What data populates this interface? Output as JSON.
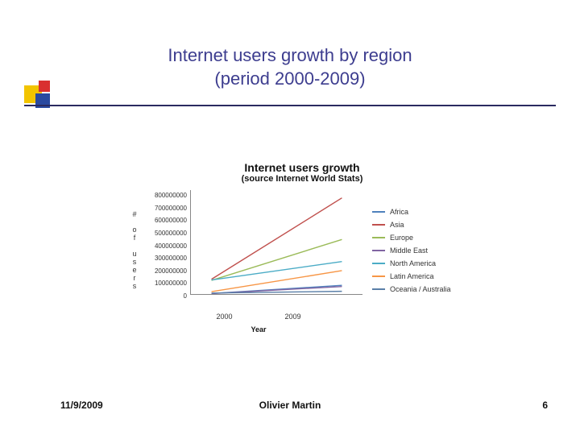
{
  "slide": {
    "title_line1": "Internet users growth by region",
    "title_line2": "(period 2000-2009)",
    "title_color": "#3d3d8f",
    "rule_color": "#2a2a60"
  },
  "chart": {
    "type": "line",
    "title": "Internet users growth",
    "subtitle": "(source Internet World Stats)",
    "yaxis_label": "# of users",
    "xaxis_label": "Year",
    "xlim": [
      2000,
      2009
    ],
    "xticks": [
      "2000",
      "2009"
    ],
    "ylim": [
      0,
      800000000
    ],
    "yticks": [
      "800000000",
      "700000000",
      "600000000",
      "500000000",
      "400000000",
      "300000000",
      "200000000",
      "100000000",
      "0"
    ],
    "plot_bg": "#ffffff",
    "axis_color": "#888888",
    "series": [
      {
        "name": "Africa",
        "color": "#4f81bd",
        "y2000": 4500000,
        "y2009": 67000000
      },
      {
        "name": "Asia",
        "color": "#c0504d",
        "y2000": 114000000,
        "y2009": 740000000
      },
      {
        "name": "Europe",
        "color": "#9bbb59",
        "y2000": 105000000,
        "y2009": 420000000
      },
      {
        "name": "Middle East",
        "color": "#8064a2",
        "y2000": 3300000,
        "y2009": 58000000
      },
      {
        "name": "North America",
        "color": "#4bacc6",
        "y2000": 108000000,
        "y2009": 250000000
      },
      {
        "name": "Latin America",
        "color": "#f79646",
        "y2000": 18000000,
        "y2009": 180000000
      },
      {
        "name": "Oceania / Australia",
        "color": "#5a7fa8",
        "y2000": 7600000,
        "y2009": 21000000
      }
    ]
  },
  "footer": {
    "date": "11/9/2009",
    "author": "Olivier Martin",
    "page": "6"
  }
}
